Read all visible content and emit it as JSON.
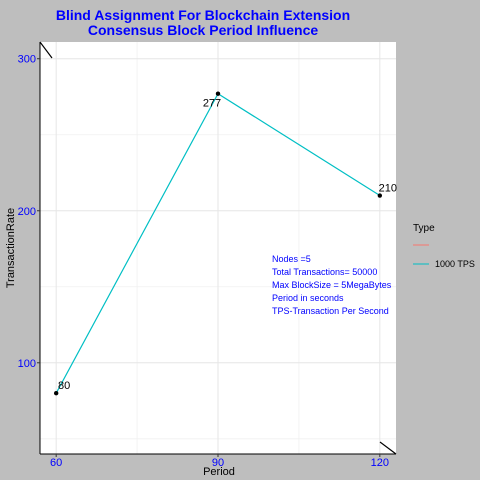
{
  "chart_data": {
    "type": "line",
    "title_lines": [
      "Blind Assignment For Blockchain Extension",
      "Consensus Block Period Influence"
    ],
    "xlabel": "Period",
    "ylabel": "TransactionRate",
    "x": [
      60,
      90,
      120
    ],
    "x_ticks": [
      60,
      90,
      120
    ],
    "y_ticks": [
      100,
      200,
      300
    ],
    "xlim": [
      57,
      123
    ],
    "ylim": [
      40,
      311
    ],
    "grid": true,
    "series": [
      {
        "name": "1000 TPS",
        "color": "#00bfc4",
        "values": [
          80,
          277,
          210
        ],
        "point_labels": [
          "80",
          "277",
          "210"
        ]
      }
    ],
    "legend": {
      "title": "Type",
      "placement": "right",
      "entries": [
        {
          "label": "",
          "color": "#f8766d"
        },
        {
          "label": "1000 TPS",
          "color": "#00bfc4"
        }
      ]
    },
    "annotations": [
      "Nodes =5",
      "Total Transactions= 50000",
      "Max BlockSize = 5MegaBytes",
      "Period in seconds",
      "TPS-Transaction Per Second"
    ]
  }
}
